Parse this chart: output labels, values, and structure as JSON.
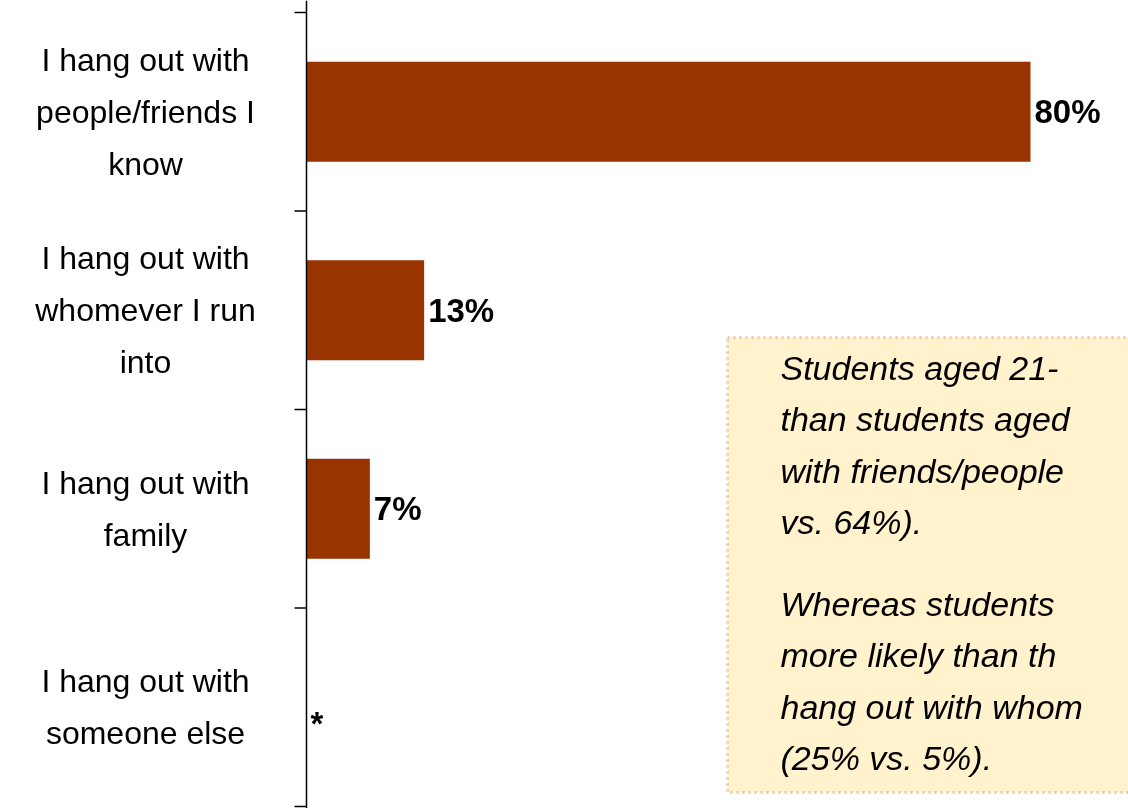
{
  "chart_data": {
    "type": "bar",
    "orientation": "horizontal",
    "categories": [
      "I hang out with people/friends I know",
      "I hang out with whomever I run into",
      "I hang out with family",
      "I hang out with someone else"
    ],
    "values": [
      80,
      13,
      7,
      null
    ],
    "color": "#993300",
    "value_labels": [
      "80%",
      "13%",
      "7%",
      "*"
    ],
    "annotations": [
      "Students aged 21-\nthan students aged\nwith friends/people\nvs. 64%).",
      "Whereas students\nmore likely than th\nhang out with whom\n(25% vs. 5%)."
    ]
  }
}
